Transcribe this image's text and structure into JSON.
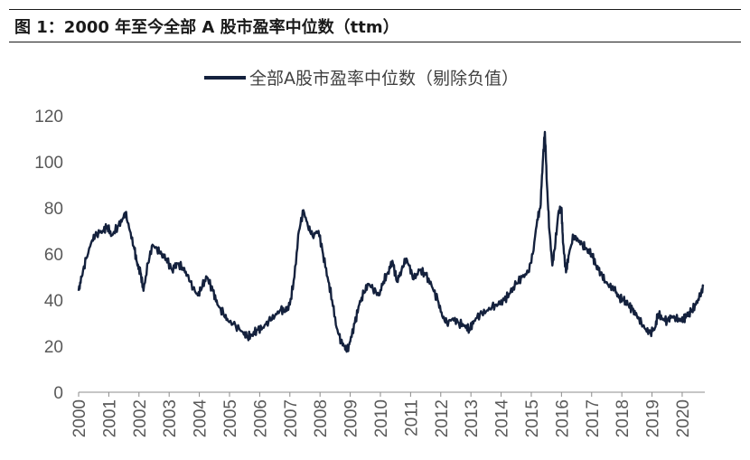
{
  "figure": {
    "title": "图 1：2000 年至今全部 A 股市盈率中位数（ttm）"
  },
  "chart_data": {
    "type": "line",
    "title": "",
    "xlabel": "",
    "ylabel": "",
    "ylim": [
      0,
      120
    ],
    "yticks": [
      "0",
      "20",
      "40",
      "60",
      "80",
      "100",
      "120"
    ],
    "xlim": [
      2000,
      2020.75
    ],
    "xticks": [
      "2000",
      "2001",
      "2002",
      "2003",
      "2004",
      "2005",
      "2006",
      "2007",
      "2008",
      "2009",
      "2010",
      "2011",
      "2012",
      "2013",
      "2014",
      "2015",
      "2016",
      "2017",
      "2018",
      "2019",
      "2020"
    ],
    "grid": false,
    "legend_position": "top-center",
    "series": [
      {
        "name": "全部A股市盈率中位数（剔除负值）",
        "color": "#14213d",
        "x": [
          2000.0,
          2000.1,
          2000.25,
          2000.45,
          2000.6,
          2000.8,
          2000.95,
          2001.1,
          2001.3,
          2001.45,
          2001.55,
          2001.7,
          2001.85,
          2001.95,
          2002.05,
          2002.15,
          2002.3,
          2002.45,
          2002.6,
          2002.75,
          2002.9,
          2003.1,
          2003.25,
          2003.45,
          2003.6,
          2003.8,
          2003.95,
          2004.1,
          2004.25,
          2004.45,
          2004.6,
          2004.8,
          2004.95,
          2005.2,
          2005.45,
          2005.6,
          2005.75,
          2005.9,
          2006.1,
          2006.3,
          2006.5,
          2006.7,
          2006.85,
          2007.0,
          2007.15,
          2007.3,
          2007.45,
          2007.6,
          2007.75,
          2007.95,
          2008.1,
          2008.25,
          2008.4,
          2008.55,
          2008.7,
          2008.8,
          2008.9,
          2009.0,
          2009.15,
          2009.3,
          2009.45,
          2009.6,
          2009.75,
          2009.95,
          2010.1,
          2010.25,
          2010.4,
          2010.55,
          2010.7,
          2010.85,
          2010.95,
          2011.1,
          2011.3,
          2011.5,
          2011.7,
          2011.9,
          2012.05,
          2012.2,
          2012.4,
          2012.6,
          2012.8,
          2012.95,
          2013.1,
          2013.3,
          2013.5,
          2013.7,
          2013.9,
          2014.1,
          2014.3,
          2014.5,
          2014.7,
          2014.9,
          2015.05,
          2015.2,
          2015.3,
          2015.38,
          2015.45,
          2015.52,
          2015.6,
          2015.7,
          2015.8,
          2015.9,
          2016.0,
          2016.05,
          2016.15,
          2016.25,
          2016.4,
          2016.55,
          2016.7,
          2016.85,
          2017.0,
          2017.15,
          2017.3,
          2017.45,
          2017.6,
          2017.75,
          2017.9,
          2018.05,
          2018.2,
          2018.35,
          2018.5,
          2018.65,
          2018.8,
          2018.95,
          2019.1,
          2019.2,
          2019.35,
          2019.5,
          2019.65,
          2019.8,
          2019.95,
          2020.05,
          2020.15,
          2020.3,
          2020.45,
          2020.6,
          2020.7
        ],
        "y": [
          44,
          50,
          58,
          66,
          69,
          70,
          72,
          68,
          72,
          75,
          78,
          70,
          62,
          55,
          52,
          44,
          56,
          64,
          62,
          60,
          58,
          53,
          56,
          54,
          51,
          45,
          42,
          46,
          50,
          44,
          38,
          34,
          31,
          29,
          26,
          24,
          25,
          27,
          28,
          31,
          33,
          36,
          35,
          38,
          50,
          70,
          79,
          72,
          68,
          70,
          60,
          50,
          40,
          28,
          22,
          20,
          18,
          22,
          30,
          38,
          43,
          47,
          45,
          42,
          48,
          52,
          57,
          48,
          53,
          58,
          55,
          49,
          53,
          51,
          46,
          40,
          33,
          30,
          32,
          30,
          29,
          27,
          31,
          34,
          35,
          37,
          38,
          40,
          43,
          47,
          50,
          52,
          60,
          75,
          80,
          100,
          113,
          90,
          70,
          55,
          65,
          78,
          80,
          65,
          52,
          60,
          68,
          66,
          64,
          62,
          60,
          55,
          52,
          48,
          46,
          45,
          41,
          40,
          38,
          36,
          33,
          30,
          27,
          26,
          28,
          34,
          32,
          31,
          33,
          32,
          31,
          32,
          33,
          35,
          38,
          42,
          46
        ]
      }
    ]
  }
}
